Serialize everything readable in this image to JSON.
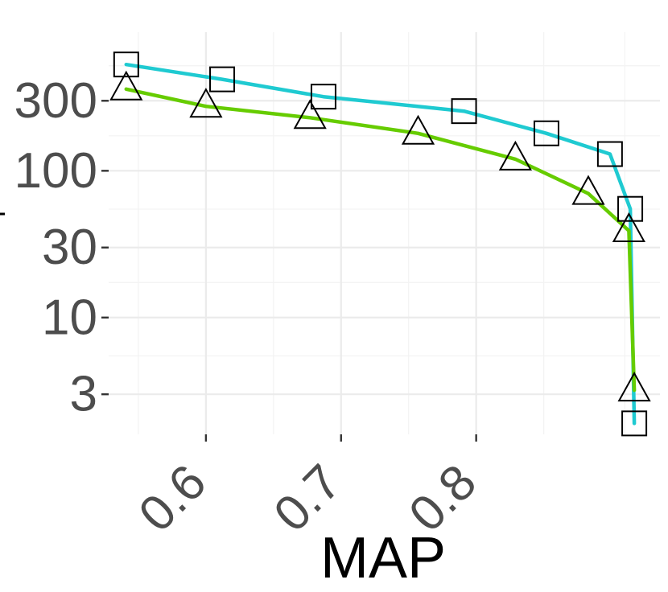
{
  "chart_data": {
    "type": "line",
    "xlabel": "MAP",
    "ylabel": "",
    "y_scale": "log",
    "x_ticks": [
      {
        "value": 0.6,
        "label": "0.6"
      },
      {
        "value": 0.7,
        "label": "0.7"
      },
      {
        "value": 0.8,
        "label": "0.8"
      }
    ],
    "y_ticks": [
      {
        "value": 3,
        "label": "3"
      },
      {
        "value": 10,
        "label": "10"
      },
      {
        "value": 30,
        "label": "30"
      },
      {
        "value": 100,
        "label": "100"
      },
      {
        "value": 300,
        "label": "300"
      }
    ],
    "xlim": [
      0.528,
      0.936
    ],
    "ylim": [
      1.6,
      880
    ],
    "grid": true,
    "series": [
      {
        "marker": "square",
        "color": "#1fcad1",
        "x": [
          0.541,
          0.612,
          0.687,
          0.791,
          0.852,
          0.899,
          0.914,
          0.917
        ],
        "y": [
          530,
          420,
          320,
          255,
          180,
          130,
          55,
          1.9
        ]
      },
      {
        "marker": "triangle",
        "color": "#66cc00",
        "x": [
          0.541,
          0.6,
          0.677,
          0.757,
          0.829,
          0.883,
          0.913,
          0.917
        ],
        "y": [
          360,
          275,
          230,
          180,
          120,
          70,
          39,
          3.2
        ]
      }
    ]
  }
}
